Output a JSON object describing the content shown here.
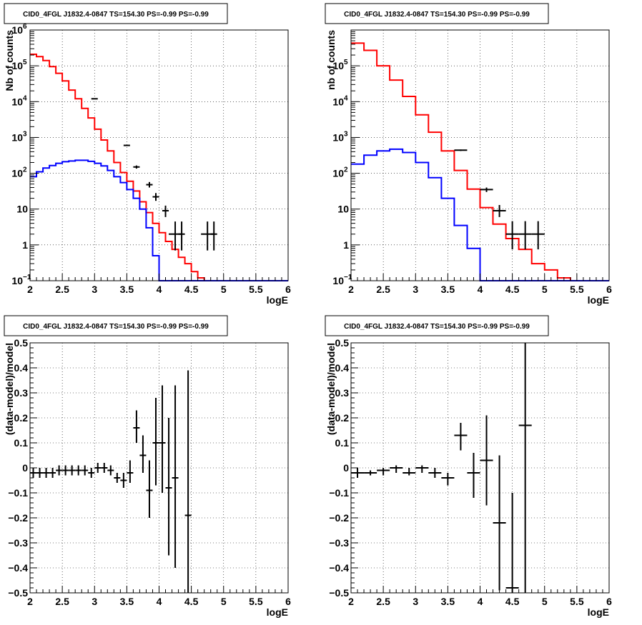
{
  "chart_data": [
    {
      "type": "line",
      "title": "CID0_4FGL J1832.4-0847 TS=154.30 PS=-0.99 PS=-0.99",
      "xlabel": "logE",
      "ylabel": "Nb of counts",
      "xlim": [
        2,
        6
      ],
      "ylim": [
        0.1,
        1000000
      ],
      "yscale": "log",
      "grid": true,
      "bin_width": 0.1,
      "x_ticks": [
        "2",
        "2.5",
        "3",
        "3.5",
        "4",
        "4.5",
        "5",
        "5.5",
        "6"
      ],
      "y_ticks": [
        {
          "v": 0.1,
          "base": "10",
          "exp": "−1"
        },
        {
          "v": 1,
          "base": "1",
          "exp": ""
        },
        {
          "v": 10,
          "base": "10",
          "exp": ""
        },
        {
          "v": 100,
          "base": "10",
          "exp": "2"
        },
        {
          "v": 1000,
          "base": "10",
          "exp": "3"
        },
        {
          "v": 10000,
          "base": "10",
          "exp": "4"
        },
        {
          "v": 100000,
          "base": "10",
          "exp": "5"
        },
        {
          "v": 1000000,
          "base": "10",
          "exp": "6"
        }
      ],
      "series": [
        {
          "color": "#ff0000",
          "kind": "histogram",
          "edges_start": 2.0,
          "values": [
            210000,
            180000,
            140000,
            95000,
            62000,
            38000,
            21000,
            12000,
            6500,
            3500,
            1700,
            850,
            420,
            200,
            105,
            60,
            32,
            16,
            8,
            4,
            2.2,
            1.25,
            0.75,
            0.45,
            0.3,
            0.18,
            0.12,
            0.1,
            0.1,
            0.1,
            0.1,
            0.1,
            0.1,
            0.1,
            0.1,
            0.1,
            0.1,
            0.1,
            0.1,
            0.1
          ]
        },
        {
          "color": "#0000ff",
          "kind": "histogram",
          "edges_start": 2.0,
          "values": [
            80,
            110,
            140,
            165,
            190,
            210,
            220,
            230,
            230,
            215,
            190,
            160,
            120,
            80,
            55,
            35,
            20,
            10,
            3,
            0.5,
            0.1,
            0.1,
            0.1,
            0.1,
            0.1,
            0.1,
            0.1,
            0.1,
            0.1,
            0.1,
            0.1,
            0.1,
            0.1,
            0.1,
            0.1,
            0.1,
            0.1,
            0.1,
            0.1,
            0.1
          ]
        }
      ],
      "points": [
        {
          "x": 3.0,
          "y": 12000,
          "xerr": 0.05,
          "ylo": 11900,
          "yhi": 12100
        },
        {
          "x": 3.5,
          "y": 600,
          "xerr": 0.05,
          "ylo": 580,
          "yhi": 620
        },
        {
          "x": 3.65,
          "y": 150,
          "xerr": 0.05,
          "ylo": 135,
          "yhi": 165
        },
        {
          "x": 3.85,
          "y": 48,
          "xerr": 0.05,
          "ylo": 40,
          "yhi": 57
        },
        {
          "x": 3.95,
          "y": 22,
          "xerr": 0.05,
          "ylo": 17,
          "yhi": 28
        },
        {
          "x": 4.1,
          "y": 9,
          "xerr": 0.05,
          "ylo": 6,
          "yhi": 12.5
        },
        {
          "x": 4.25,
          "y": 2,
          "xerr": 0.1,
          "ylo": 0.7,
          "yhi": 4.5
        },
        {
          "x": 4.35,
          "y": 2,
          "xerr": 0.05,
          "ylo": 0.7,
          "yhi": 4.5
        },
        {
          "x": 4.75,
          "y": 2,
          "xerr": 0.1,
          "ylo": 0.7,
          "yhi": 4.5
        },
        {
          "x": 4.85,
          "y": 2,
          "xerr": 0.05,
          "ylo": 0.7,
          "yhi": 4.5
        }
      ]
    },
    {
      "type": "line",
      "title": "CID0_4FGL J1832.4-0847 TS=154.30 PS=-0.99 PS=-0.99",
      "xlabel": "logE",
      "ylabel": "nb of counts",
      "xlim": [
        2,
        6
      ],
      "ylim": [
        0.1,
        1000000
      ],
      "yscale": "log",
      "grid": true,
      "bin_width": 0.2,
      "x_ticks": [
        "2",
        "2.5",
        "3",
        "3.5",
        "4",
        "4.5",
        "5",
        "5.5",
        "6"
      ],
      "y_ticks": [
        {
          "v": 0.1,
          "base": "10",
          "exp": "−1"
        },
        {
          "v": 1,
          "base": "1",
          "exp": ""
        },
        {
          "v": 10,
          "base": "10",
          "exp": ""
        },
        {
          "v": 100,
          "base": "10",
          "exp": "2"
        },
        {
          "v": 1000,
          "base": "10",
          "exp": "3"
        },
        {
          "v": 10000,
          "base": "10",
          "exp": "4"
        },
        {
          "v": 100000,
          "base": "10",
          "exp": "5"
        }
      ],
      "series": [
        {
          "color": "#ff0000",
          "kind": "histogram",
          "edges_start": 2.0,
          "values": [
            430000,
            270000,
            100000,
            40000,
            14000,
            4300,
            1400,
            420,
            120,
            36,
            11,
            3.8,
            1.5,
            0.75,
            0.3,
            0.2,
            0.12,
            0.1,
            0.1,
            0.1
          ]
        },
        {
          "color": "#0000ff",
          "kind": "histogram",
          "edges_start": 2.0,
          "values": [
            180,
            320,
            420,
            470,
            380,
            200,
            75,
            20,
            3.5,
            0.8,
            0.1,
            0.1,
            0.1,
            0.1,
            0.1,
            0.1,
            0.1,
            0.1,
            0.1,
            0.1
          ]
        }
      ],
      "points": [
        {
          "x": 3.7,
          "y": 440,
          "xerr": 0.1,
          "ylo": 420,
          "yhi": 460
        },
        {
          "x": 4.1,
          "y": 35,
          "xerr": 0.1,
          "ylo": 30,
          "yhi": 40
        },
        {
          "x": 4.3,
          "y": 9,
          "xerr": 0.1,
          "ylo": 6,
          "yhi": 13
        },
        {
          "x": 4.5,
          "y": 2,
          "xerr": 0.1,
          "ylo": 0.75,
          "yhi": 4.6
        },
        {
          "x": 4.7,
          "y": 2,
          "xerr": 0.1,
          "ylo": 0.75,
          "yhi": 4.6
        },
        {
          "x": 4.9,
          "y": 2,
          "xerr": 0.1,
          "ylo": 0.75,
          "yhi": 4.6
        }
      ]
    },
    {
      "type": "scatter",
      "title": "CID0_4FGL J1832.4-0847 TS=154.30 PS=-0.99 PS=-0.99",
      "xlabel": "logE",
      "ylabel": "(data-model)/model",
      "xlim": [
        2,
        6
      ],
      "ylim": [
        -0.5,
        0.5
      ],
      "yscale": "linear",
      "grid": true,
      "x_ticks": [
        "2",
        "2.5",
        "3",
        "3.5",
        "4",
        "4.5",
        "5",
        "5.5",
        "6"
      ],
      "y_ticks": [
        {
          "v": -0.5,
          "base": "−0.5"
        },
        {
          "v": -0.4,
          "base": "−0.4"
        },
        {
          "v": -0.3,
          "base": "−0.3"
        },
        {
          "v": -0.2,
          "base": "−0.2"
        },
        {
          "v": -0.1,
          "base": "−0.1"
        },
        {
          "v": 0,
          "base": "0"
        },
        {
          "v": 0.1,
          "base": "0.1"
        },
        {
          "v": 0.2,
          "base": "0.2"
        },
        {
          "v": 0.3,
          "base": "0.3"
        },
        {
          "v": 0.4,
          "base": "0.4"
        },
        {
          "v": 0.5,
          "base": "0.5"
        }
      ],
      "points": [
        {
          "x": 2.05,
          "y": -0.02,
          "xerr": 0.05,
          "ylo": -0.04,
          "yhi": 0.0
        },
        {
          "x": 2.15,
          "y": -0.02,
          "xerr": 0.05,
          "ylo": -0.04,
          "yhi": 0.0
        },
        {
          "x": 2.25,
          "y": -0.02,
          "xerr": 0.05,
          "ylo": -0.04,
          "yhi": 0.0
        },
        {
          "x": 2.35,
          "y": -0.02,
          "xerr": 0.05,
          "ylo": -0.04,
          "yhi": 0.0
        },
        {
          "x": 2.45,
          "y": -0.01,
          "xerr": 0.05,
          "ylo": -0.03,
          "yhi": 0.01
        },
        {
          "x": 2.55,
          "y": -0.01,
          "xerr": 0.05,
          "ylo": -0.03,
          "yhi": 0.01
        },
        {
          "x": 2.65,
          "y": -0.01,
          "xerr": 0.05,
          "ylo": -0.03,
          "yhi": 0.01
        },
        {
          "x": 2.75,
          "y": -0.01,
          "xerr": 0.05,
          "ylo": -0.03,
          "yhi": 0.01
        },
        {
          "x": 2.85,
          "y": -0.01,
          "xerr": 0.05,
          "ylo": -0.03,
          "yhi": 0.01
        },
        {
          "x": 2.95,
          "y": -0.02,
          "xerr": 0.05,
          "ylo": -0.04,
          "yhi": 0.0
        },
        {
          "x": 3.05,
          "y": 0.0,
          "xerr": 0.05,
          "ylo": -0.02,
          "yhi": 0.02
        },
        {
          "x": 3.15,
          "y": 0.0,
          "xerr": 0.05,
          "ylo": -0.02,
          "yhi": 0.02
        },
        {
          "x": 3.25,
          "y": -0.01,
          "xerr": 0.05,
          "ylo": -0.03,
          "yhi": 0.01
        },
        {
          "x": 3.35,
          "y": -0.04,
          "xerr": 0.05,
          "ylo": -0.06,
          "yhi": -0.02
        },
        {
          "x": 3.45,
          "y": -0.05,
          "xerr": 0.05,
          "ylo": -0.08,
          "yhi": -0.02
        },
        {
          "x": 3.55,
          "y": -0.02,
          "xerr": 0.05,
          "ylo": -0.06,
          "yhi": 0.03
        },
        {
          "x": 3.65,
          "y": 0.16,
          "xerr": 0.05,
          "ylo": 0.1,
          "yhi": 0.23
        },
        {
          "x": 3.75,
          "y": 0.05,
          "xerr": 0.05,
          "ylo": -0.02,
          "yhi": 0.13
        },
        {
          "x": 3.85,
          "y": -0.09,
          "xerr": 0.05,
          "ylo": -0.2,
          "yhi": 0.03
        },
        {
          "x": 3.95,
          "y": 0.1,
          "xerr": 0.05,
          "ylo": -0.07,
          "yhi": 0.28
        },
        {
          "x": 4.05,
          "y": 0.1,
          "xerr": 0.05,
          "ylo": -0.1,
          "yhi": 0.33
        },
        {
          "x": 4.15,
          "y": -0.08,
          "xerr": 0.05,
          "ylo": -0.35,
          "yhi": 0.2
        },
        {
          "x": 4.25,
          "y": -0.04,
          "xerr": 0.05,
          "ylo": -0.4,
          "yhi": 0.33
        },
        {
          "x": 4.45,
          "y": -0.19,
          "xerr": 0.05,
          "ylo": -0.5,
          "yhi": 0.39
        }
      ]
    },
    {
      "type": "scatter",
      "title": "CID0_4FGL J1832.4-0847 TS=154.30 PS=-0.99 PS=-0.99",
      "xlabel": "logE",
      "ylabel": "(data-model)/model",
      "xlim": [
        2,
        6
      ],
      "ylim": [
        -0.5,
        0.5
      ],
      "yscale": "linear",
      "grid": true,
      "x_ticks": [
        "2",
        "2.5",
        "3",
        "3.5",
        "4",
        "4.5",
        "5",
        "5.5",
        "6"
      ],
      "y_ticks": [
        {
          "v": -0.5,
          "base": "−0.5"
        },
        {
          "v": -0.4,
          "base": "−0.4"
        },
        {
          "v": -0.3,
          "base": "−0.3"
        },
        {
          "v": -0.2,
          "base": "−0.2"
        },
        {
          "v": -0.1,
          "base": "−0.1"
        },
        {
          "v": 0,
          "base": "0"
        },
        {
          "v": 0.1,
          "base": "0.1"
        },
        {
          "v": 0.2,
          "base": "0.2"
        },
        {
          "v": 0.3,
          "base": "0.3"
        },
        {
          "v": 0.4,
          "base": "0.4"
        },
        {
          "v": 0.5,
          "base": "0.5"
        }
      ],
      "points": [
        {
          "x": 2.1,
          "y": -0.02,
          "xerr": 0.1,
          "ylo": -0.04,
          "yhi": 0.0
        },
        {
          "x": 2.3,
          "y": -0.02,
          "xerr": 0.1,
          "ylo": -0.03,
          "yhi": -0.01
        },
        {
          "x": 2.5,
          "y": -0.01,
          "xerr": 0.1,
          "ylo": -0.03,
          "yhi": 0.0
        },
        {
          "x": 2.7,
          "y": 0.0,
          "xerr": 0.1,
          "ylo": -0.02,
          "yhi": 0.01
        },
        {
          "x": 2.9,
          "y": -0.02,
          "xerr": 0.1,
          "ylo": -0.03,
          "yhi": 0.0
        },
        {
          "x": 3.1,
          "y": 0.0,
          "xerr": 0.1,
          "ylo": -0.02,
          "yhi": 0.01
        },
        {
          "x": 3.3,
          "y": -0.02,
          "xerr": 0.1,
          "ylo": -0.04,
          "yhi": 0.0
        },
        {
          "x": 3.5,
          "y": -0.04,
          "xerr": 0.1,
          "ylo": -0.07,
          "yhi": -0.02
        },
        {
          "x": 3.7,
          "y": 0.13,
          "xerr": 0.1,
          "ylo": 0.07,
          "yhi": 0.18
        },
        {
          "x": 3.9,
          "y": -0.02,
          "xerr": 0.1,
          "ylo": -0.12,
          "yhi": 0.06
        },
        {
          "x": 4.1,
          "y": 0.03,
          "xerr": 0.1,
          "ylo": -0.15,
          "yhi": 0.21
        },
        {
          "x": 4.3,
          "y": -0.22,
          "xerr": 0.1,
          "ylo": -0.49,
          "yhi": 0.05
        },
        {
          "x": 4.5,
          "y": -0.48,
          "xerr": 0.1,
          "ylo": -0.5,
          "yhi": -0.1
        },
        {
          "x": 4.7,
          "y": 0.17,
          "xerr": 0.1,
          "ylo": -0.5,
          "yhi": 0.5
        }
      ]
    }
  ]
}
